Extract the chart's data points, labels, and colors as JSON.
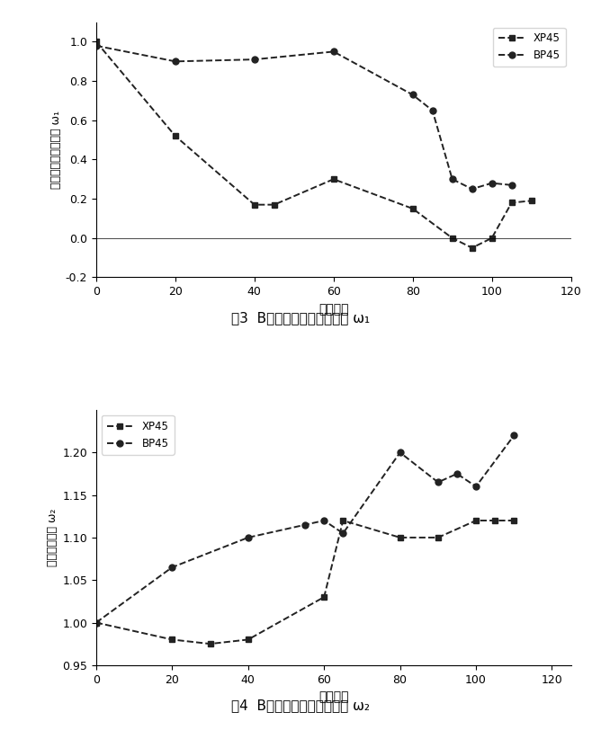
{
  "fig1": {
    "caption": "图3  B溶液中循环后评价参数 ω₁",
    "ylabel": "动弹性模量评价参数 ω₁",
    "xlabel": "循环次数",
    "xlim": [
      0,
      120
    ],
    "ylim": [
      -0.2,
      1.1
    ],
    "xticks": [
      0,
      20,
      40,
      60,
      80,
      100,
      120
    ],
    "yticks": [
      -0.2,
      0.0,
      0.2,
      0.4,
      0.6,
      0.8,
      1.0
    ],
    "XP45_x": [
      0,
      20,
      40,
      45,
      60,
      80,
      90,
      95,
      100,
      105,
      110
    ],
    "XP45_y": [
      1.0,
      0.52,
      0.17,
      0.17,
      0.3,
      0.15,
      0.0,
      -0.05,
      0.0,
      0.18,
      0.19
    ],
    "BP45_x": [
      0,
      20,
      40,
      60,
      80,
      85,
      90,
      95,
      100,
      105
    ],
    "BP45_y": [
      0.98,
      0.9,
      0.91,
      0.95,
      0.73,
      0.65,
      0.3,
      0.25,
      0.28,
      0.27
    ]
  },
  "fig2": {
    "caption": "图4  B溶液中循环后评价参数 ω₂",
    "ylabel": "质量评价参数 ω₂",
    "xlabel": "循环次数",
    "xlim": [
      0,
      125
    ],
    "ylim": [
      0.95,
      1.25
    ],
    "xticks": [
      0,
      20,
      40,
      60,
      80,
      100,
      120
    ],
    "yticks": [
      0.95,
      1.0,
      1.05,
      1.1,
      1.15,
      1.2
    ],
    "XP45_x": [
      0,
      20,
      30,
      40,
      60,
      65,
      80,
      90,
      100,
      105,
      110
    ],
    "XP45_y": [
      1.0,
      0.98,
      0.975,
      0.98,
      1.03,
      1.12,
      1.1,
      1.1,
      1.12,
      1.12,
      1.12
    ],
    "BP45_x": [
      0,
      20,
      40,
      55,
      60,
      65,
      80,
      90,
      95,
      100,
      110
    ],
    "BP45_y": [
      1.0,
      1.065,
      1.1,
      1.115,
      1.12,
      1.105,
      1.2,
      1.165,
      1.175,
      1.16,
      1.22
    ]
  },
  "line_color": "#222222",
  "marker_square": "s",
  "marker_circle": "o",
  "markersize": 5,
  "linewidth": 1.4
}
